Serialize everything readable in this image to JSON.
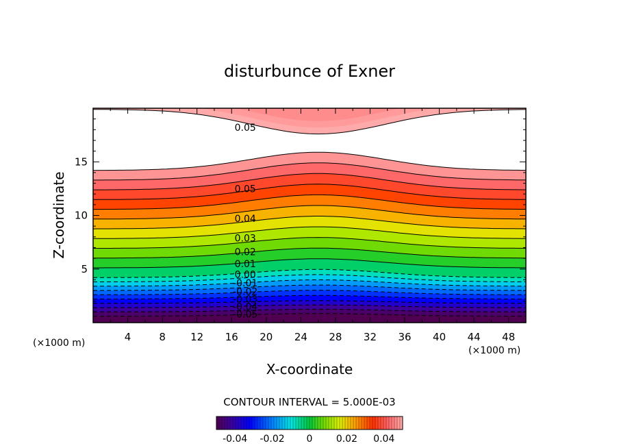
{
  "chart_data": {
    "type": "contour",
    "title": "disturbunce of Exner",
    "xlabel": "X-coordinate",
    "ylabel": "Z-coordinate",
    "x_unit_left": "(×1000 m)",
    "x_unit_right": "(×1000 m)",
    "xlim": [
      0,
      50
    ],
    "ylim": [
      0,
      20
    ],
    "xticks": [
      "4",
      "8",
      "12",
      "16",
      "20",
      "24",
      "28",
      "32",
      "36",
      "40",
      "44",
      "48"
    ],
    "yticks": [
      "5",
      "10",
      "15"
    ],
    "contour_interval_text": "CONTOUR INTERVAL = 5.000E-03",
    "contour_labels": [
      {
        "text": "0.05",
        "x": 17.5,
        "z": 18.2
      },
      {
        "text": "0.05",
        "x": 17.5,
        "z": 12.5
      },
      {
        "text": "0.04",
        "x": 17.5,
        "z": 9.7
      },
      {
        "text": "0.03",
        "x": 17.5,
        "z": 7.9
      },
      {
        "text": "0.02",
        "x": 17.5,
        "z": 6.6
      },
      {
        "text": "0.01",
        "x": 17.5,
        "z": 5.5
      },
      {
        "text": "0.00",
        "x": 17.5,
        "z": 4.5
      },
      {
        "text": "-0.01",
        "x": 17.5,
        "z": 3.7
      },
      {
        "text": "-0.02",
        "x": 17.5,
        "z": 2.9
      },
      {
        "text": "-0.03",
        "x": 17.5,
        "z": 2.2
      },
      {
        "text": "-0.04",
        "x": 17.5,
        "z": 1.5
      },
      {
        "text": "-0.05",
        "x": 17.5,
        "z": 0.8
      }
    ],
    "colorbar": {
      "min": -0.05,
      "max": 0.05,
      "tick_labels": [
        "-0.04",
        "-0.02",
        "0",
        "0.02",
        "0.04"
      ],
      "tick_values": [
        -0.04,
        -0.02,
        0,
        0.02,
        0.04
      ]
    }
  }
}
